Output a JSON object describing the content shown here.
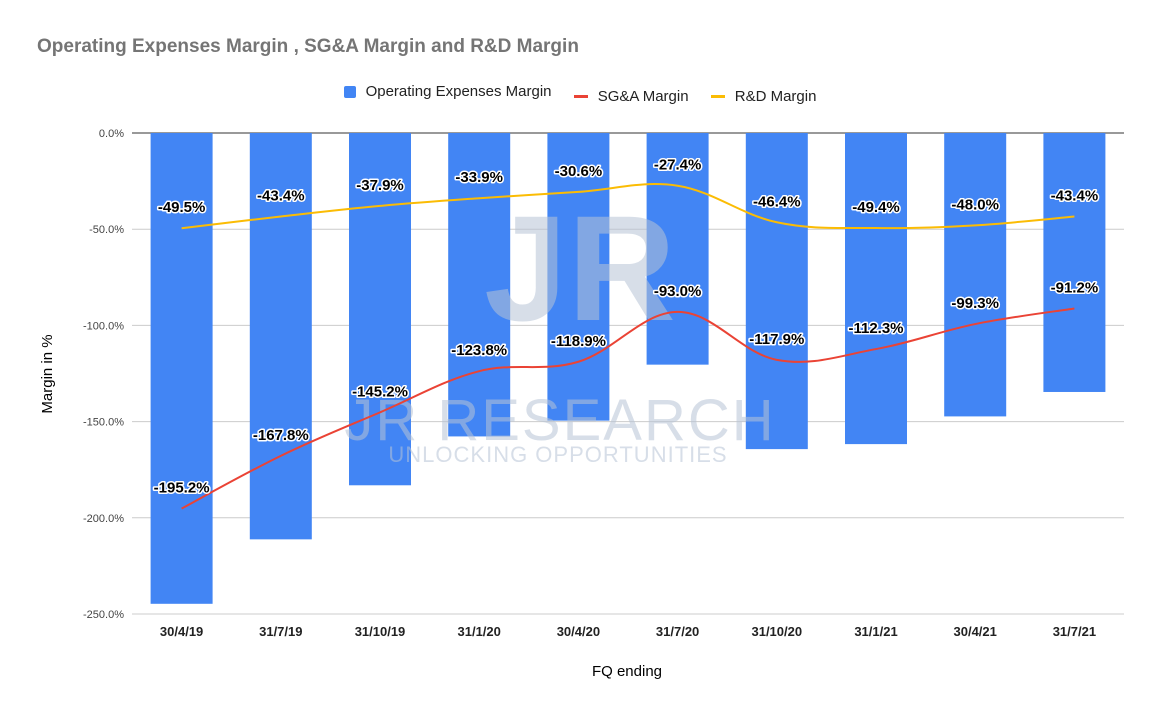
{
  "chart_data": {
    "type": "bar",
    "title": "Operating Expenses Margin , SG&A Margin and R&D Margin",
    "xlabel": "FQ ending",
    "ylabel": "Margin in %",
    "ylim": [
      -250,
      0
    ],
    "yticks": [
      0,
      -50,
      -100,
      -150,
      -200,
      -250
    ],
    "ytick_labels": [
      "0.0%",
      "-50.0%",
      "-100.0%",
      "-150.0%",
      "-200.0%",
      "-250.0%"
    ],
    "grid": true,
    "legend_position": "top",
    "categories": [
      "30/4/19",
      "31/7/19",
      "31/10/19",
      "31/1/20",
      "30/4/20",
      "31/7/20",
      "31/10/20",
      "31/1/21",
      "30/4/21",
      "31/7/21"
    ],
    "series": [
      {
        "name": "Operating Expenses Margin",
        "kind": "bar",
        "color": "#4285f4",
        "values": [
          -244.7,
          -211.2,
          -183.1,
          -157.7,
          -149.5,
          -120.4,
          -164.3,
          -161.7,
          -147.3,
          -134.6
        ]
      },
      {
        "name": "SG&A Margin",
        "kind": "line",
        "color": "#ea4335",
        "values": [
          -195.2,
          -167.8,
          -145.2,
          -123.8,
          -118.9,
          -93.0,
          -117.9,
          -112.3,
          -99.3,
          -91.2
        ],
        "labels": [
          "-195.2%",
          "-167.8%",
          "-145.2%",
          "-123.8%",
          "-118.9%",
          "-93.0%",
          "-117.9%",
          "-112.3%",
          "-99.3%",
          "-91.2%"
        ]
      },
      {
        "name": "R&D Margin",
        "kind": "line",
        "color": "#fbbc04",
        "values": [
          -49.5,
          -43.4,
          -37.9,
          -33.9,
          -30.6,
          -27.4,
          -46.4,
          -49.4,
          -48.0,
          -43.4
        ],
        "labels": [
          "-49.5%",
          "-43.4%",
          "-37.9%",
          "-33.9%",
          "-30.6%",
          "-27.4%",
          "-46.4%",
          "-49.4%",
          "-48.0%",
          "-43.4%"
        ]
      }
    ]
  },
  "watermark": {
    "line1": "JR RESEARCH",
    "line2": "UNLOCKING OPPORTUNITIES"
  }
}
